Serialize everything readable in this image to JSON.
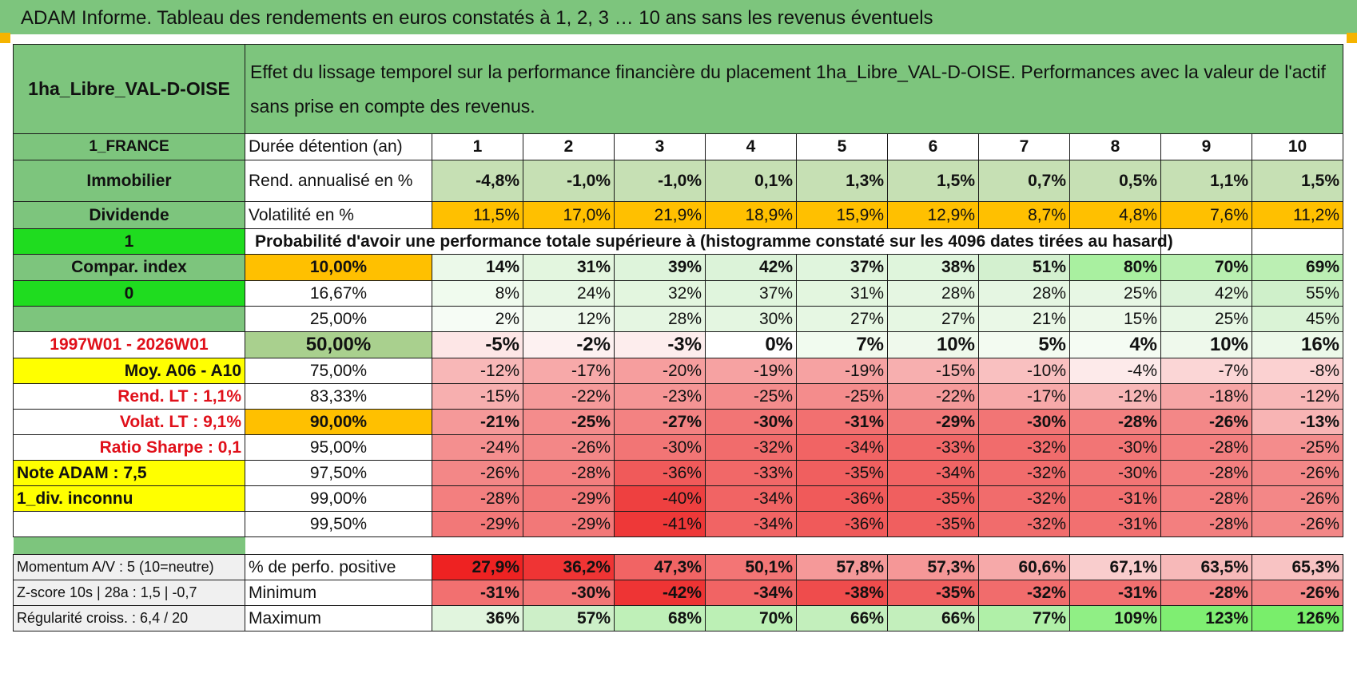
{
  "title": "ADAM Informe. Tableau des rendements en euros constatés à 1, 2, 3 … 10 ans sans les revenus éventuels",
  "asset_name": "1ha_Libre_VAL-D-OISE",
  "description": "Effet du lissage temporel sur la performance financière du placement 1ha_Libre_VAL-D-OISE. Performances avec la valeur de l'actif sans prise en compte des revenus.",
  "holding_label": "Durée détention (an)",
  "years": [
    "1",
    "2",
    "3",
    "4",
    "5",
    "6",
    "7",
    "8",
    "9",
    "10"
  ],
  "left_labels": {
    "country": "1_FRANCE",
    "category": "Immobilier",
    "income": "Dividende",
    "flag1": "1",
    "compar": "Compar. index",
    "flag0": "0",
    "period": "1997W01 - 2026W01",
    "moy": "Moy. A06 - A10",
    "rend_lt": "Rend. LT :    1,1%",
    "volat_lt": "Volat. LT :    9,1%",
    "sharpe": "Ratio Sharpe :     0,1",
    "note": "Note ADAM : 7,5",
    "div": "1_div. inconnu"
  },
  "rend_label": "Rend. annualisé en %",
  "rend": [
    "-4,8%",
    "-1,0%",
    "-1,0%",
    "0,1%",
    "1,3%",
    "1,5%",
    "0,7%",
    "0,5%",
    "1,1%",
    "1,5%"
  ],
  "vol_label": "Volatilité en %",
  "vol": [
    "11,5%",
    "17,0%",
    "21,9%",
    "18,9%",
    "15,9%",
    "12,9%",
    "8,7%",
    "4,8%",
    "7,6%",
    "11,2%"
  ],
  "prob_header": "Probabilité d'avoir une performance totale supérieure à (histogramme constaté sur les 4096 dates tirées au hasard)",
  "rows": [
    {
      "p": "10,00%",
      "v": [
        "14%",
        "31%",
        "39%",
        "42%",
        "37%",
        "38%",
        "51%",
        "80%",
        "70%",
        "69%"
      ],
      "bg": [
        "#ebf9e9",
        "#e3f6df",
        "#def4db",
        "#dcf3d9",
        "#e0f5dd",
        "#dff5dc",
        "#d3f0cf",
        "#a9f0a0",
        "#b8efb0",
        "#bbefb3"
      ]
    },
    {
      "p": "16,67%",
      "v": [
        "8%",
        "24%",
        "32%",
        "37%",
        "31%",
        "28%",
        "28%",
        "25%",
        "42%",
        "55%"
      ],
      "bg": [
        "#f0fbee",
        "#e7f7e4",
        "#e3f6df",
        "#e0f5dd",
        "#e3f6df",
        "#e5f6e2",
        "#e5f6e2",
        "#e7f7e4",
        "#dcf3d9",
        "#cff0ca"
      ]
    },
    {
      "p": "25,00%",
      "v": [
        "2%",
        "12%",
        "28%",
        "30%",
        "27%",
        "27%",
        "21%",
        "15%",
        "25%",
        "45%"
      ],
      "bg": [
        "#f6fcf5",
        "#eef9ec",
        "#e5f6e2",
        "#e4f6e1",
        "#e6f7e3",
        "#e6f7e3",
        "#eaf8e7",
        "#edf9ea",
        "#e7f7e4",
        "#daf3d6"
      ]
    },
    {
      "p": "50,00%",
      "v": [
        "-5%",
        "-2%",
        "-3%",
        "0%",
        "7%",
        "10%",
        "5%",
        "4%",
        "10%",
        "16%"
      ],
      "bg": [
        "#fde6e6",
        "#fdf1f1",
        "#fdeded",
        "#ffffff",
        "#f1fbef",
        "#eff9ec",
        "#f3fbf1",
        "#f5fcf3",
        "#eff9ec",
        "#ecf9e9"
      ]
    },
    {
      "p": "75,00%",
      "v": [
        "-12%",
        "-17%",
        "-20%",
        "-19%",
        "-19%",
        "-15%",
        "-10%",
        "-4%",
        "-7%",
        "-8%"
      ],
      "bg": [
        "#f8b7b7",
        "#f7a9a9",
        "#f69e9e",
        "#f6a2a2",
        "#f6a2a2",
        "#f7afaf",
        "#f9c0c0",
        "#fdeaea",
        "#fbd6d6",
        "#fbd1d1"
      ]
    },
    {
      "p": "83,33%",
      "v": [
        "-15%",
        "-22%",
        "-23%",
        "-25%",
        "-25%",
        "-22%",
        "-17%",
        "-12%",
        "-18%",
        "-12%"
      ],
      "bg": [
        "#f7afaf",
        "#f59a9a",
        "#f59595",
        "#f48c8c",
        "#f48c8c",
        "#f59a9a",
        "#f7a9a9",
        "#f8b7b7",
        "#f6a5a5",
        "#f8b7b7"
      ]
    },
    {
      "p": "90,00%",
      "v": [
        "-21%",
        "-25%",
        "-27%",
        "-30%",
        "-31%",
        "-29%",
        "-30%",
        "-28%",
        "-26%",
        "-13%"
      ],
      "bg": [
        "#f59999",
        "#f48c8c",
        "#f38282",
        "#f27575",
        "#f27070",
        "#f27878",
        "#f27575",
        "#f37f7f",
        "#f38787",
        "#f8b4b4"
      ]
    },
    {
      "p": "95,00%",
      "v": [
        "-24%",
        "-26%",
        "-30%",
        "-32%",
        "-34%",
        "-33%",
        "-32%",
        "-30%",
        "-28%",
        "-25%"
      ],
      "bg": [
        "#f48f8f",
        "#f38787",
        "#f27575",
        "#f16c6c",
        "#f16464",
        "#f16868",
        "#f16c6c",
        "#f27575",
        "#f37f7f",
        "#f48c8c"
      ]
    },
    {
      "p": "97,50%",
      "v": [
        "-26%",
        "-28%",
        "-36%",
        "-33%",
        "-35%",
        "-34%",
        "-32%",
        "-30%",
        "-28%",
        "-26%"
      ],
      "bg": [
        "#f38787",
        "#f37f7f",
        "#f05a5a",
        "#f16868",
        "#f05f5f",
        "#f16464",
        "#f16c6c",
        "#f27575",
        "#f37f7f",
        "#f38787"
      ]
    },
    {
      "p": "99,00%",
      "v": [
        "-28%",
        "-29%",
        "-40%",
        "-34%",
        "-36%",
        "-35%",
        "-32%",
        "-31%",
        "-28%",
        "-26%"
      ],
      "bg": [
        "#f37f7f",
        "#f27878",
        "#ee4040",
        "#f16464",
        "#f05a5a",
        "#f05f5f",
        "#f16c6c",
        "#f27070",
        "#f37f7f",
        "#f38787"
      ]
    },
    {
      "p": "99,50%",
      "v": [
        "-29%",
        "-29%",
        "-41%",
        "-34%",
        "-36%",
        "-35%",
        "-32%",
        "-31%",
        "-28%",
        "-26%"
      ],
      "bg": [
        "#f27878",
        "#f27878",
        "#ee3838",
        "#f16464",
        "#f05a5a",
        "#f05f5f",
        "#f16c6c",
        "#f27070",
        "#f37f7f",
        "#f38787"
      ]
    }
  ],
  "footer": [
    {
      "left": "Momentum A/V : 5 (10=neutre)",
      "label": "% de perfo. positive",
      "v": [
        "27,9%",
        "36,2%",
        "47,3%",
        "50,1%",
        "57,8%",
        "57,3%",
        "60,6%",
        "67,1%",
        "63,5%",
        "65,3%"
      ],
      "bg": [
        "#ee2222",
        "#ef3434",
        "#f16464",
        "#f37575",
        "#f59999",
        "#f59797",
        "#f6a9a9",
        "#f9cdcd",
        "#f7b9b9",
        "#f8c3c3"
      ]
    },
    {
      "left": "Z-score 10s | 28a : 1,5 | -0,7",
      "label": "Minimum",
      "v": [
        "-31%",
        "-30%",
        "-42%",
        "-34%",
        "-38%",
        "-35%",
        "-32%",
        "-31%",
        "-28%",
        "-26%"
      ],
      "bg": [
        "#f27070",
        "#f27575",
        "#ee3434",
        "#f16464",
        "#ef4c4c",
        "#f05f5f",
        "#f16c6c",
        "#f27070",
        "#f37f7f",
        "#f38787"
      ]
    },
    {
      "left": "Régularité croiss. : 6,4 / 20",
      "label": "Maximum",
      "v": [
        "36%",
        "57%",
        "68%",
        "70%",
        "66%",
        "66%",
        "77%",
        "109%",
        "123%",
        "126%"
      ],
      "bg": [
        "#e1f5de",
        "#cdefc8",
        "#bff0b8",
        "#bcf0b5",
        "#c3efbc",
        "#c3efbc",
        "#b0f0a8",
        "#90ef85",
        "#7fee72",
        "#79ee6b"
      ]
    }
  ]
}
